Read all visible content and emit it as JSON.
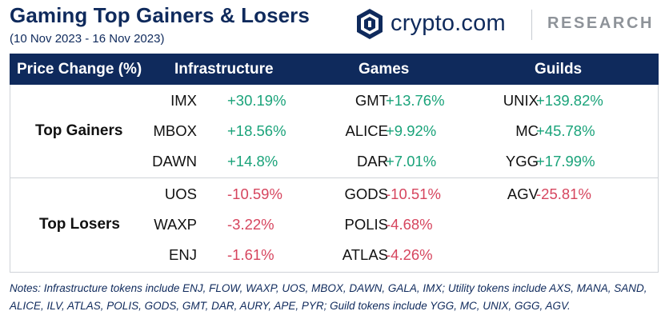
{
  "header": {
    "title": "Gaming Top Gainers & Losers",
    "subtitle": "(10 Nov 2023 - 16 Nov 2023)",
    "brand": "crypto.com",
    "brand_tag": "RESEARCH"
  },
  "table": {
    "columns": [
      "Price Change (%)",
      "Infrastructure",
      "Games",
      "Guilds"
    ],
    "sections": [
      {
        "label": "Top Gainers",
        "rows": [
          [
            {
              "ticker": "IMX",
              "change": "+30.19%"
            },
            {
              "ticker": "GMT",
              "change": "+13.76%"
            },
            {
              "ticker": "UNIX",
              "change": "+139.82%"
            }
          ],
          [
            {
              "ticker": "MBOX",
              "change": "+18.56%"
            },
            {
              "ticker": "ALICE",
              "change": "+9.92%"
            },
            {
              "ticker": "MC",
              "change": "+45.78%"
            }
          ],
          [
            {
              "ticker": "DAWN",
              "change": "+14.8%"
            },
            {
              "ticker": "DAR",
              "change": "+7.01%"
            },
            {
              "ticker": "YGG",
              "change": "+17.99%"
            }
          ]
        ]
      },
      {
        "label": "Top Losers",
        "rows": [
          [
            {
              "ticker": "UOS",
              "change": "-10.59%"
            },
            {
              "ticker": "GODS",
              "change": "-10.51%"
            },
            {
              "ticker": "AGV",
              "change": "-25.81%"
            }
          ],
          [
            {
              "ticker": "WAXP",
              "change": "-3.22%"
            },
            {
              "ticker": "POLIS",
              "change": "-4.68%"
            },
            {
              "ticker": "",
              "change": ""
            }
          ],
          [
            {
              "ticker": "ENJ",
              "change": "-1.61%"
            },
            {
              "ticker": "ATLAS",
              "change": "-4.26%"
            },
            {
              "ticker": "",
              "change": ""
            }
          ]
        ]
      }
    ]
  },
  "notes": "Notes: Infrastructure tokens include ENJ, FLOW, WAXP, UOS, MBOX, DAWN, GALA, IMX; Utility tokens include AXS, MANA, SAND, ALICE, ILV, ATLAS, POLIS, GODS, GMT, DAR, AURY, APE, PYR; Guild tokens include YGG, MC, UNIX, GGG, AGV.",
  "colors": {
    "header_bg": "#0f2a5c",
    "positive": "#1aa37a",
    "negative": "#d6455e",
    "brand_gray": "#8e9399"
  },
  "icons": {
    "brand_logo": "crypto-com-lion-shield-icon"
  }
}
